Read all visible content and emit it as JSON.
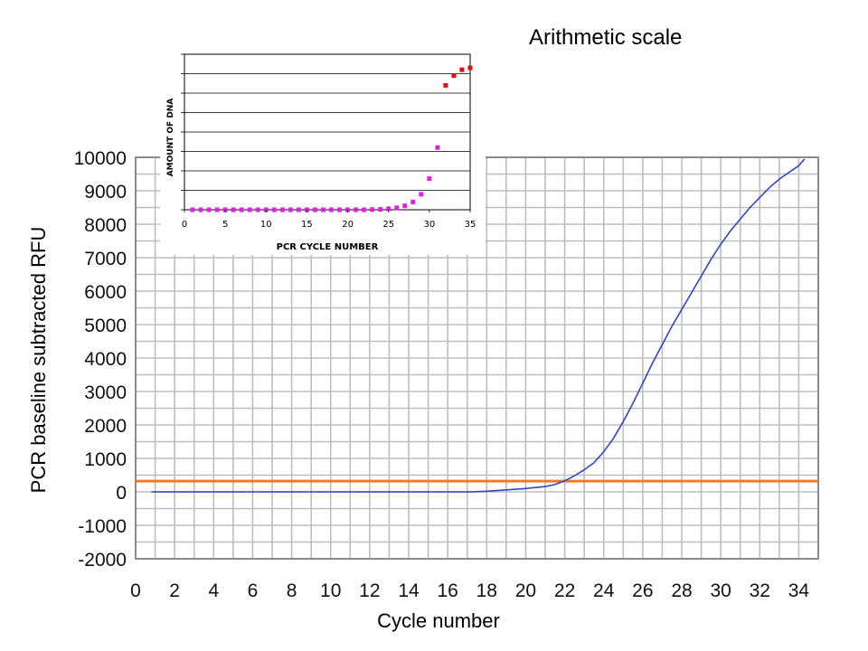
{
  "page": {
    "title": "Arithmetic scale"
  },
  "chart_data": [
    {
      "type": "line",
      "xlabel": "Cycle number",
      "ylabel": "PCR baseline subtracted RFU",
      "xlim": [
        0,
        35
      ],
      "ylim": [
        -2000,
        10000
      ],
      "x_ticks": [
        0,
        2,
        4,
        6,
        8,
        10,
        12,
        14,
        16,
        18,
        20,
        22,
        24,
        26,
        28,
        30,
        32,
        34
      ],
      "y_ticks": [
        -2000,
        -1000,
        0,
        1000,
        2000,
        3000,
        4000,
        5000,
        6000,
        7000,
        8000,
        9000,
        10000
      ],
      "grid": true,
      "threshold": {
        "value": 320,
        "color": "#f07a2a"
      },
      "series": [
        {
          "color": "#3344cc",
          "x": [
            0.8,
            5,
            10,
            15,
            17.2,
            18,
            19,
            20,
            21,
            21.5,
            22,
            22.5,
            23,
            23.5,
            24,
            24.5,
            25,
            25.5,
            26,
            26.5,
            27,
            27.5,
            28,
            28.5,
            29,
            29.5,
            30,
            30.5,
            31,
            31.5,
            32,
            32.5,
            33,
            33.5,
            34,
            34.3
          ],
          "y": [
            0,
            0,
            0,
            0,
            0,
            20,
            60,
            100,
            160,
            220,
            330,
            480,
            660,
            870,
            1200,
            1600,
            2100,
            2650,
            3250,
            3850,
            4400,
            4950,
            5450,
            5950,
            6450,
            6950,
            7400,
            7800,
            8150,
            8500,
            8800,
            9100,
            9350,
            9550,
            9750,
            9950
          ]
        }
      ]
    },
    {
      "type": "scatter",
      "xlabel": "PCR CYCLE NUMBER",
      "ylabel": "AMOUNT OF DNA",
      "xlim": [
        0,
        35
      ],
      "x_ticks": [
        0,
        5,
        10,
        15,
        20,
        25,
        30,
        35
      ],
      "ylim": [
        0,
        8
      ],
      "grid": true,
      "series": [
        {
          "color": "#e020e0",
          "x": [
            1,
            2,
            3,
            4,
            5,
            6,
            7,
            8,
            9,
            10,
            11,
            12,
            13,
            14,
            15,
            16,
            17,
            18,
            19,
            20,
            21,
            22,
            23,
            24,
            25,
            26,
            27,
            28,
            29,
            30,
            31
          ],
          "y": [
            0,
            0,
            0,
            0,
            0,
            0,
            0,
            0,
            0,
            0,
            0,
            0,
            0,
            0,
            0,
            0,
            0,
            0,
            0,
            0,
            0,
            0,
            0.01,
            0.02,
            0.05,
            0.1,
            0.2,
            0.4,
            0.8,
            1.6,
            3.2
          ]
        },
        {
          "color": "#e01010",
          "x": [
            32,
            33,
            34,
            35
          ],
          "y": [
            6.4,
            6.9,
            7.2,
            7.3
          ]
        }
      ]
    }
  ]
}
